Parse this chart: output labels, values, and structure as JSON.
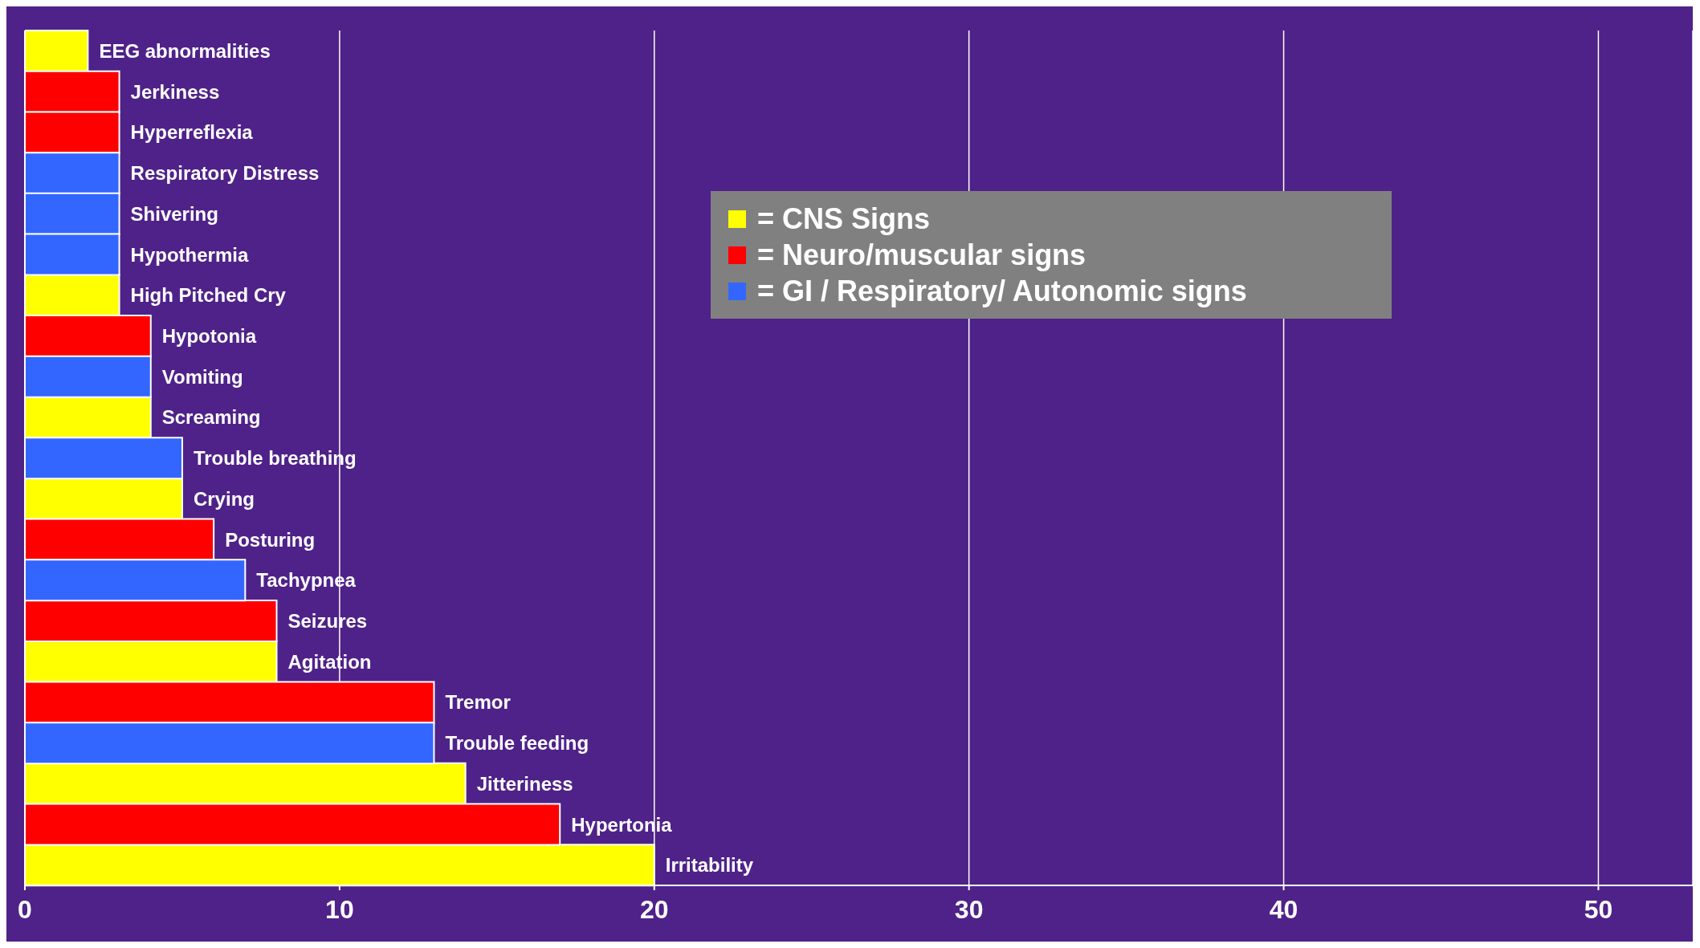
{
  "chart_data": {
    "type": "bar",
    "orientation": "horizontal",
    "categories": [
      "EEG abnormalities",
      "Jerkiness",
      "Hyperreflexia",
      "Respiratory Distress",
      "Shivering",
      "Hypothermia",
      "High Pitched Cry",
      "Hypotonia",
      "Vomiting",
      "Screaming",
      "Trouble breathing",
      "Crying",
      "Posturing",
      "Tachypnea",
      "Seizures",
      "Agitation",
      "Tremor",
      "Trouble feeding",
      "Jitteriness",
      "Hypertonia",
      "Irritability"
    ],
    "series": [
      {
        "name": "= CNS Signs",
        "color": "#ffff00",
        "values": [
          2,
          null,
          null,
          null,
          null,
          null,
          3,
          null,
          null,
          4,
          null,
          5,
          null,
          null,
          null,
          8,
          null,
          null,
          14,
          null,
          20
        ]
      },
      {
        "name": "= Neuro/muscular signs",
        "color": "#ff0000",
        "values": [
          null,
          3,
          3,
          null,
          null,
          null,
          null,
          4,
          null,
          null,
          null,
          null,
          6,
          null,
          8,
          null,
          13,
          null,
          null,
          17,
          null
        ]
      },
      {
        "name": "= GI / Respiratory/ Autonomic signs",
        "color": "#3366ff",
        "values": [
          null,
          null,
          null,
          3,
          3,
          3,
          null,
          null,
          4,
          null,
          5,
          null,
          null,
          7,
          null,
          null,
          null,
          13,
          null,
          null,
          null
        ]
      }
    ],
    "xlim": [
      0,
      53
    ],
    "xticks": [
      0,
      10,
      20,
      30,
      40,
      50
    ],
    "grid": "x",
    "legend": "top",
    "tick_labels": "x"
  }
}
